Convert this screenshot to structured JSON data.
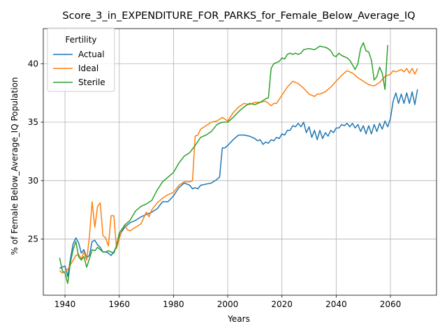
{
  "chart_data": {
    "type": "line",
    "title": "Score_3_in_EXPENDITURE_FOR_PARKS_for_Female_Below_Average_IQ",
    "xlabel": "Years",
    "ylabel": "% of Female Below_Average_IQ Population",
    "xlim": [
      1932,
      2077
    ],
    "ylim": [
      20.2,
      43.0
    ],
    "xticks": [
      1940,
      1960,
      1980,
      2000,
      2020,
      2040,
      2060
    ],
    "yticks": [
      25,
      30,
      35,
      40
    ],
    "grid": true,
    "legend": {
      "title": "Fertility",
      "position": "top-left"
    },
    "series": [
      {
        "name": "Actual",
        "color": "#1f77b4",
        "points": [
          [
            1938,
            22.5
          ],
          [
            1939,
            22.6
          ],
          [
            1940,
            22.7
          ],
          [
            1941,
            21.8
          ],
          [
            1942,
            23.3
          ],
          [
            1943,
            24.6
          ],
          [
            1944,
            25.1
          ],
          [
            1945,
            24.7
          ],
          [
            1946,
            23.8
          ],
          [
            1947,
            24.1
          ],
          [
            1948,
            23.4
          ],
          [
            1949,
            23.6
          ],
          [
            1950,
            24.8
          ],
          [
            1951,
            24.9
          ],
          [
            1952,
            24.5
          ],
          [
            1953,
            24.3
          ],
          [
            1954,
            23.9
          ],
          [
            1955,
            23.9
          ],
          [
            1956,
            23.8
          ],
          [
            1957,
            23.6
          ],
          [
            1958,
            23.9
          ],
          [
            1959,
            24.4
          ],
          [
            1960,
            25.3
          ],
          [
            1962,
            26.0
          ],
          [
            1964,
            26.4
          ],
          [
            1966,
            26.6
          ],
          [
            1968,
            26.9
          ],
          [
            1970,
            27.1
          ],
          [
            1972,
            27.3
          ],
          [
            1974,
            27.6
          ],
          [
            1976,
            28.2
          ],
          [
            1978,
            28.2
          ],
          [
            1980,
            28.7
          ],
          [
            1982,
            29.4
          ],
          [
            1984,
            29.8
          ],
          [
            1986,
            29.6
          ],
          [
            1987,
            29.3
          ],
          [
            1988,
            29.4
          ],
          [
            1989,
            29.3
          ],
          [
            1990,
            29.6
          ],
          [
            1992,
            29.7
          ],
          [
            1994,
            29.8
          ],
          [
            1996,
            30.1
          ],
          [
            1997,
            30.3
          ],
          [
            1998,
            32.8
          ],
          [
            1999,
            32.8
          ],
          [
            2000,
            33.0
          ],
          [
            2002,
            33.5
          ],
          [
            2004,
            33.9
          ],
          [
            2006,
            33.9
          ],
          [
            2008,
            33.8
          ],
          [
            2010,
            33.6
          ],
          [
            2011,
            33.4
          ],
          [
            2012,
            33.5
          ],
          [
            2013,
            33.1
          ],
          [
            2014,
            33.3
          ],
          [
            2015,
            33.2
          ],
          [
            2016,
            33.5
          ],
          [
            2017,
            33.4
          ],
          [
            2018,
            33.7
          ],
          [
            2019,
            33.6
          ],
          [
            2020,
            34.0
          ],
          [
            2021,
            33.9
          ],
          [
            2022,
            34.3
          ],
          [
            2023,
            34.3
          ],
          [
            2024,
            34.7
          ],
          [
            2025,
            34.6
          ],
          [
            2026,
            34.9
          ],
          [
            2027,
            34.6
          ],
          [
            2028,
            35.0
          ],
          [
            2029,
            34.1
          ],
          [
            2030,
            34.6
          ],
          [
            2031,
            33.7
          ],
          [
            2032,
            34.3
          ],
          [
            2033,
            33.5
          ],
          [
            2034,
            34.3
          ],
          [
            2035,
            33.6
          ],
          [
            2036,
            34.1
          ],
          [
            2037,
            33.8
          ],
          [
            2038,
            34.3
          ],
          [
            2039,
            34.1
          ],
          [
            2040,
            34.5
          ],
          [
            2041,
            34.5
          ],
          [
            2042,
            34.8
          ],
          [
            2043,
            34.7
          ],
          [
            2044,
            34.9
          ],
          [
            2045,
            34.6
          ],
          [
            2046,
            34.9
          ],
          [
            2047,
            34.5
          ],
          [
            2048,
            34.8
          ],
          [
            2049,
            34.2
          ],
          [
            2050,
            34.7
          ],
          [
            2051,
            34.0
          ],
          [
            2052,
            34.7
          ],
          [
            2053,
            34.0
          ],
          [
            2054,
            34.8
          ],
          [
            2055,
            34.2
          ],
          [
            2056,
            34.9
          ],
          [
            2057,
            34.4
          ],
          [
            2058,
            35.1
          ],
          [
            2059,
            34.6
          ],
          [
            2060,
            35.3
          ],
          [
            2061,
            36.8
          ],
          [
            2062,
            37.5
          ],
          [
            2063,
            36.6
          ],
          [
            2064,
            37.4
          ],
          [
            2065,
            36.6
          ],
          [
            2066,
            37.5
          ],
          [
            2067,
            36.6
          ],
          [
            2068,
            37.6
          ],
          [
            2069,
            36.5
          ],
          [
            2070,
            37.8
          ]
        ]
      },
      {
        "name": "Ideal",
        "color": "#ff7f0e",
        "points": [
          [
            1938,
            22.3
          ],
          [
            1939,
            22.1
          ],
          [
            1940,
            22.2
          ],
          [
            1941,
            22.4
          ],
          [
            1942,
            22.8
          ],
          [
            1943,
            23.2
          ],
          [
            1944,
            23.6
          ],
          [
            1945,
            23.7
          ],
          [
            1946,
            23.3
          ],
          [
            1947,
            23.9
          ],
          [
            1948,
            23.2
          ],
          [
            1949,
            25.2
          ],
          [
            1950,
            28.2
          ],
          [
            1951,
            26.0
          ],
          [
            1952,
            27.8
          ],
          [
            1953,
            28.1
          ],
          [
            1954,
            25.3
          ],
          [
            1955,
            25.1
          ],
          [
            1956,
            24.4
          ],
          [
            1957,
            27.0
          ],
          [
            1958,
            27.0
          ],
          [
            1959,
            24.2
          ],
          [
            1960,
            25.0
          ],
          [
            1961,
            25.8
          ],
          [
            1962,
            26.2
          ],
          [
            1963,
            25.8
          ],
          [
            1964,
            25.7
          ],
          [
            1966,
            26.0
          ],
          [
            1968,
            26.3
          ],
          [
            1970,
            27.3
          ],
          [
            1971,
            26.9
          ],
          [
            1972,
            27.5
          ],
          [
            1974,
            28.1
          ],
          [
            1976,
            28.5
          ],
          [
            1978,
            28.8
          ],
          [
            1980,
            29.0
          ],
          [
            1982,
            29.6
          ],
          [
            1984,
            29.9
          ],
          [
            1986,
            29.9
          ],
          [
            1987,
            30.0
          ],
          [
            1988,
            33.8
          ],
          [
            1989,
            33.9
          ],
          [
            1990,
            34.4
          ],
          [
            1992,
            34.7
          ],
          [
            1994,
            35.0
          ],
          [
            1996,
            35.1
          ],
          [
            1998,
            35.4
          ],
          [
            2000,
            35.1
          ],
          [
            2002,
            35.8
          ],
          [
            2004,
            36.3
          ],
          [
            2006,
            36.6
          ],
          [
            2008,
            36.5
          ],
          [
            2010,
            36.7
          ],
          [
            2012,
            36.7
          ],
          [
            2014,
            36.8
          ],
          [
            2016,
            36.4
          ],
          [
            2017,
            36.6
          ],
          [
            2018,
            36.6
          ],
          [
            2020,
            37.3
          ],
          [
            2022,
            38.0
          ],
          [
            2024,
            38.5
          ],
          [
            2026,
            38.3
          ],
          [
            2028,
            37.9
          ],
          [
            2030,
            37.4
          ],
          [
            2032,
            37.2
          ],
          [
            2033,
            37.4
          ],
          [
            2034,
            37.4
          ],
          [
            2036,
            37.6
          ],
          [
            2038,
            38.0
          ],
          [
            2040,
            38.5
          ],
          [
            2042,
            39.0
          ],
          [
            2044,
            39.4
          ],
          [
            2046,
            39.2
          ],
          [
            2048,
            38.8
          ],
          [
            2050,
            38.5
          ],
          [
            2052,
            38.2
          ],
          [
            2054,
            38.1
          ],
          [
            2056,
            38.4
          ],
          [
            2058,
            38.9
          ],
          [
            2060,
            39.1
          ],
          [
            2061,
            39.4
          ],
          [
            2062,
            39.3
          ],
          [
            2063,
            39.4
          ],
          [
            2064,
            39.5
          ],
          [
            2065,
            39.3
          ],
          [
            2066,
            39.6
          ],
          [
            2067,
            39.2
          ],
          [
            2068,
            39.6
          ],
          [
            2069,
            39.1
          ],
          [
            2070,
            39.6
          ]
        ]
      },
      {
        "name": "Sterile",
        "color": "#2ca02c",
        "points": [
          [
            1938,
            23.4
          ],
          [
            1939,
            22.3
          ],
          [
            1940,
            22.1
          ],
          [
            1941,
            21.2
          ],
          [
            1942,
            23.0
          ],
          [
            1943,
            24.1
          ],
          [
            1944,
            24.8
          ],
          [
            1945,
            23.5
          ],
          [
            1946,
            23.2
          ],
          [
            1947,
            23.5
          ],
          [
            1948,
            22.6
          ],
          [
            1949,
            23.3
          ],
          [
            1950,
            24.1
          ],
          [
            1951,
            24.0
          ],
          [
            1952,
            24.3
          ],
          [
            1953,
            24.1
          ],
          [
            1954,
            23.9
          ],
          [
            1955,
            23.9
          ],
          [
            1956,
            24.0
          ],
          [
            1957,
            23.9
          ],
          [
            1958,
            23.8
          ],
          [
            1959,
            24.4
          ],
          [
            1960,
            25.5
          ],
          [
            1962,
            26.2
          ],
          [
            1964,
            26.6
          ],
          [
            1966,
            27.4
          ],
          [
            1968,
            27.8
          ],
          [
            1970,
            28.0
          ],
          [
            1972,
            28.3
          ],
          [
            1974,
            29.2
          ],
          [
            1976,
            29.9
          ],
          [
            1978,
            30.3
          ],
          [
            1980,
            30.7
          ],
          [
            1982,
            31.5
          ],
          [
            1984,
            32.1
          ],
          [
            1986,
            32.4
          ],
          [
            1988,
            33.0
          ],
          [
            1990,
            33.7
          ],
          [
            1992,
            33.9
          ],
          [
            1994,
            34.2
          ],
          [
            1996,
            34.8
          ],
          [
            1998,
            35.0
          ],
          [
            2000,
            35.0
          ],
          [
            2002,
            35.4
          ],
          [
            2004,
            35.9
          ],
          [
            2006,
            36.3
          ],
          [
            2008,
            36.6
          ],
          [
            2010,
            36.5
          ],
          [
            2012,
            36.7
          ],
          [
            2014,
            37.0
          ],
          [
            2015,
            37.1
          ],
          [
            2016,
            39.6
          ],
          [
            2017,
            40.0
          ],
          [
            2018,
            40.1
          ],
          [
            2019,
            40.2
          ],
          [
            2020,
            40.5
          ],
          [
            2021,
            40.4
          ],
          [
            2022,
            40.8
          ],
          [
            2023,
            40.9
          ],
          [
            2024,
            40.8
          ],
          [
            2025,
            40.9
          ],
          [
            2026,
            40.8
          ],
          [
            2027,
            40.9
          ],
          [
            2028,
            41.2
          ],
          [
            2030,
            41.3
          ],
          [
            2032,
            41.2
          ],
          [
            2034,
            41.5
          ],
          [
            2036,
            41.4
          ],
          [
            2037,
            41.3
          ],
          [
            2038,
            41.1
          ],
          [
            2039,
            40.7
          ],
          [
            2040,
            40.6
          ],
          [
            2041,
            40.9
          ],
          [
            2042,
            40.7
          ],
          [
            2044,
            40.5
          ],
          [
            2045,
            40.3
          ],
          [
            2046,
            39.9
          ],
          [
            2047,
            39.5
          ],
          [
            2048,
            40.0
          ],
          [
            2049,
            41.3
          ],
          [
            2050,
            41.8
          ],
          [
            2051,
            41.1
          ],
          [
            2052,
            41.0
          ],
          [
            2053,
            40.3
          ],
          [
            2054,
            38.6
          ],
          [
            2055,
            38.9
          ],
          [
            2056,
            39.7
          ],
          [
            2057,
            39.2
          ],
          [
            2058,
            37.8
          ],
          [
            2059,
            41.6
          ]
        ]
      }
    ]
  }
}
